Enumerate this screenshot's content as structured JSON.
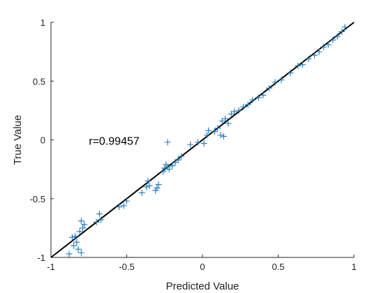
{
  "chart_data": {
    "type": "scatter",
    "title": "",
    "xlabel": "Predicted Value",
    "ylabel": "True Value",
    "xlim": [
      -1,
      1
    ],
    "ylim": [
      -1,
      1
    ],
    "xticks": [
      -1,
      -0.5,
      0,
      0.5,
      1
    ],
    "yticks": [
      -1,
      -0.5,
      0,
      0.5,
      1
    ],
    "xtick_labels": [
      "-1",
      "-0.5",
      "0",
      "0.5",
      "1"
    ],
    "ytick_labels": [
      "-1",
      "-0.5",
      "0",
      "0.5",
      "1"
    ],
    "grid": false,
    "annotation": "r=0.99457",
    "marker": "plus",
    "marker_color": "#1f77b4",
    "fit_line": {
      "x": [
        -1,
        1
      ],
      "y": [
        -1,
        1
      ],
      "color": "#000000"
    },
    "points": [
      {
        "x": -0.88,
        "y": -0.97
      },
      {
        "x": -0.86,
        "y": -0.83
      },
      {
        "x": -0.84,
        "y": -0.82
      },
      {
        "x": -0.85,
        "y": -0.9
      },
      {
        "x": -0.83,
        "y": -0.87
      },
      {
        "x": -0.82,
        "y": -0.93
      },
      {
        "x": -0.8,
        "y": -0.96
      },
      {
        "x": -0.81,
        "y": -0.78
      },
      {
        "x": -0.79,
        "y": -0.75
      },
      {
        "x": -0.8,
        "y": -0.69
      },
      {
        "x": -0.78,
        "y": -0.72
      },
      {
        "x": -0.7,
        "y": -0.7
      },
      {
        "x": -0.68,
        "y": -0.63
      },
      {
        "x": -0.67,
        "y": -0.68
      },
      {
        "x": -0.55,
        "y": -0.57
      },
      {
        "x": -0.52,
        "y": -0.56
      },
      {
        "x": -0.5,
        "y": -0.52
      },
      {
        "x": -0.4,
        "y": -0.45
      },
      {
        "x": -0.36,
        "y": -0.35
      },
      {
        "x": -0.37,
        "y": -0.4
      },
      {
        "x": -0.35,
        "y": -0.39
      },
      {
        "x": -0.31,
        "y": -0.43
      },
      {
        "x": -0.29,
        "y": -0.38
      },
      {
        "x": -0.3,
        "y": -0.41
      },
      {
        "x": -0.26,
        "y": -0.27
      },
      {
        "x": -0.25,
        "y": -0.24
      },
      {
        "x": -0.24,
        "y": -0.21
      },
      {
        "x": -0.23,
        "y": -0.23
      },
      {
        "x": -0.22,
        "y": -0.25
      },
      {
        "x": -0.23,
        "y": -0.02
      },
      {
        "x": -0.2,
        "y": -0.22
      },
      {
        "x": -0.18,
        "y": -0.19
      },
      {
        "x": -0.16,
        "y": -0.17
      },
      {
        "x": -0.14,
        "y": -0.14
      },
      {
        "x": -0.08,
        "y": -0.04
      },
      {
        "x": -0.03,
        "y": -0.02
      },
      {
        "x": 0.01,
        "y": -0.03
      },
      {
        "x": 0.03,
        "y": 0.04
      },
      {
        "x": 0.04,
        "y": 0.08
      },
      {
        "x": 0.08,
        "y": 0.07
      },
      {
        "x": 0.1,
        "y": 0.1
      },
      {
        "x": 0.12,
        "y": 0.04
      },
      {
        "x": 0.13,
        "y": 0.16
      },
      {
        "x": 0.14,
        "y": 0.03
      },
      {
        "x": 0.15,
        "y": 0.18
      },
      {
        "x": 0.17,
        "y": 0.14
      },
      {
        "x": 0.19,
        "y": 0.22
      },
      {
        "x": 0.21,
        "y": 0.24
      },
      {
        "x": 0.24,
        "y": 0.25
      },
      {
        "x": 0.27,
        "y": 0.28
      },
      {
        "x": 0.3,
        "y": 0.3
      },
      {
        "x": 0.33,
        "y": 0.34
      },
      {
        "x": 0.37,
        "y": 0.36
      },
      {
        "x": 0.4,
        "y": 0.38
      },
      {
        "x": 0.44,
        "y": 0.44
      },
      {
        "x": 0.48,
        "y": 0.49
      },
      {
        "x": 0.52,
        "y": 0.51
      },
      {
        "x": 0.58,
        "y": 0.57
      },
      {
        "x": 0.63,
        "y": 0.63
      },
      {
        "x": 0.66,
        "y": 0.64
      },
      {
        "x": 0.7,
        "y": 0.69
      },
      {
        "x": 0.74,
        "y": 0.72
      },
      {
        "x": 0.77,
        "y": 0.75
      },
      {
        "x": 0.8,
        "y": 0.79
      },
      {
        "x": 0.83,
        "y": 0.81
      },
      {
        "x": 0.86,
        "y": 0.85
      },
      {
        "x": 0.89,
        "y": 0.88
      },
      {
        "x": 0.92,
        "y": 0.92
      },
      {
        "x": 0.94,
        "y": 0.96
      }
    ]
  }
}
